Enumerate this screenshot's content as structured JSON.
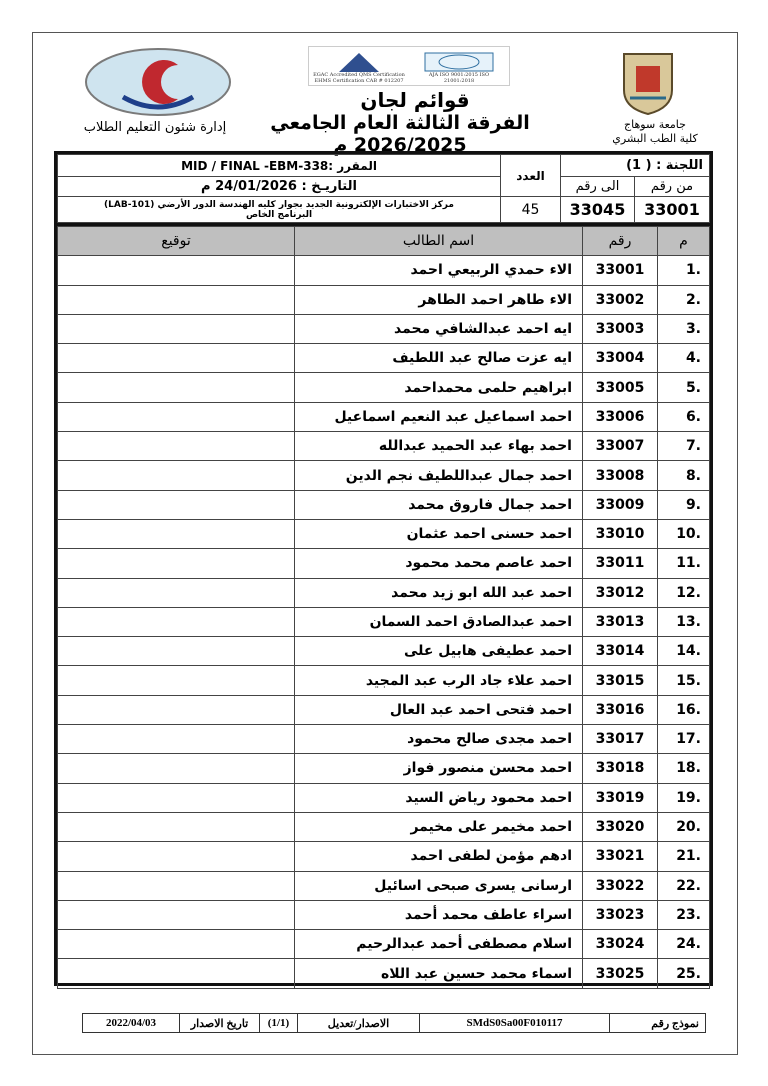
{
  "header": {
    "university": "جامعة سوهاج",
    "faculty": "كلية الطب البشري",
    "department": "إدارة شئون التعليم الطلاب",
    "title": "قوائم لجان",
    "subtitle": "الفرقة الثالثة العام الجامعي 2026/2025 م",
    "accreditation_logo_text": "EGAC Accredited QMS Certification EHMS Certification CAB # 012207",
    "iso_logo_text": "AJA ISO 9001:2015 ISO 21001:2018"
  },
  "info": {
    "committee": "اللجنة : ( 1)",
    "from_label": "من رقم",
    "to_label": "الى رقم",
    "from_value": "33001",
    "to_value": "33045",
    "count_label": "العدد",
    "count_value": "45",
    "course": "المقرر :MID / FINAL -EBM-338",
    "date": "التاريـخ : 24/01/2026 م",
    "location": "مركز الاختبارات الإلكترونية الجديد بجوار كليه الهندسة الدور الأرضي (LAB-101)",
    "program": "البرنامج الخاص"
  },
  "columns": {
    "index": "م",
    "number": "رقم",
    "name": "اسم الطالب",
    "signature": "توقيع"
  },
  "students": [
    {
      "i": "1.",
      "n": "33001",
      "name": "الاء حمدي الربيعي احمد"
    },
    {
      "i": "2.",
      "n": "33002",
      "name": "الاء طاهر احمد الطاهر"
    },
    {
      "i": "3.",
      "n": "33003",
      "name": "ايه احمد عبدالشافي محمد"
    },
    {
      "i": "4.",
      "n": "33004",
      "name": "ايه عزت  صالح عبد اللطيف"
    },
    {
      "i": "5.",
      "n": "33005",
      "name": "ابراهيم حلمى محمداحمد"
    },
    {
      "i": "6.",
      "n": "33006",
      "name": "احمد اسماعيل عبد النعيم اسماعيل"
    },
    {
      "i": "7.",
      "n": "33007",
      "name": "احمد  بهاء عبد الحميد عبدالله"
    },
    {
      "i": "8.",
      "n": "33008",
      "name": "احمد جمال عبداللطيف نجم الدين"
    },
    {
      "i": "9.",
      "n": "33009",
      "name": "احمد جمال فاروق محمد"
    },
    {
      "i": "10.",
      "n": "33010",
      "name": "احمد حسنى احمد عثمان"
    },
    {
      "i": "11.",
      "n": "33011",
      "name": "احمد عاصم محمد محمود"
    },
    {
      "i": "12.",
      "n": "33012",
      "name": "احمد عبد الله ابو زيد محمد"
    },
    {
      "i": "13.",
      "n": "33013",
      "name": "احمد عبدالصادق احمد السمان"
    },
    {
      "i": "14.",
      "n": "33014",
      "name": "احمد عطيفى هابيل على"
    },
    {
      "i": "15.",
      "n": "33015",
      "name": "احمد علاء جاد الرب عبد المجيد"
    },
    {
      "i": "16.",
      "n": "33016",
      "name": "احمد فتحى احمد عبد العال"
    },
    {
      "i": "17.",
      "n": "33017",
      "name": "احمد مجدى صالح محمود"
    },
    {
      "i": "18.",
      "n": "33018",
      "name": "احمد محسن منصور فواز"
    },
    {
      "i": "19.",
      "n": "33019",
      "name": "احمد محمود رياض السيد"
    },
    {
      "i": "20.",
      "n": "33020",
      "name": "احمد مخيمر على مخيمر"
    },
    {
      "i": "21.",
      "n": "33021",
      "name": "ادهم مؤمن  لطفى احمد"
    },
    {
      "i": "22.",
      "n": "33022",
      "name": "ارسانى يسرى صبحى اسائيل"
    },
    {
      "i": "23.",
      "n": "33023",
      "name": "اسراء عاطف محمد أحمد"
    },
    {
      "i": "24.",
      "n": "33024",
      "name": "اسلام مصطفى أحمد عبدالرحيم"
    },
    {
      "i": "25.",
      "n": "33025",
      "name": "اسماء محمد حسين عبد اللاه"
    }
  ],
  "footer": {
    "form_label": "نموذج رقم",
    "form_value": "SMdS0Sa00F010117",
    "version_label": "الاصدار/تعديل",
    "version_value": "(1/1)",
    "issue_label": "تاريخ الاصدار",
    "issue_value": "2022/04/03"
  }
}
